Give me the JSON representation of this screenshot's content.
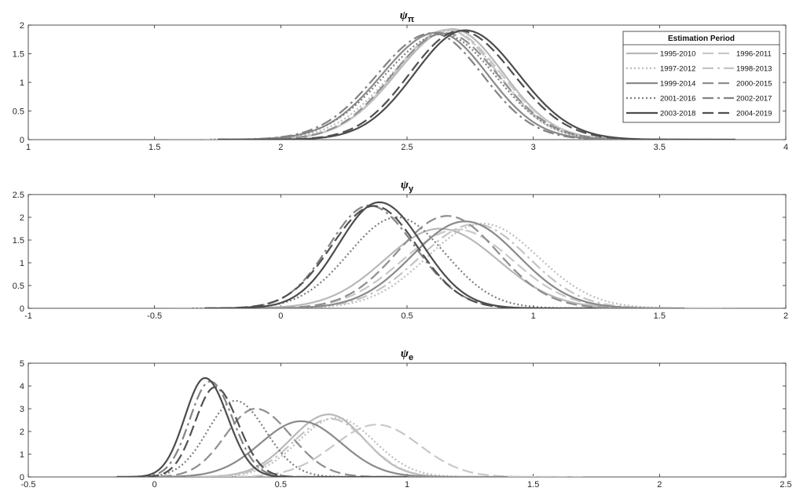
{
  "chart_data": [
    {
      "type": "line",
      "title": "ψ",
      "title_subscript": "π",
      "xlim": [
        1,
        4
      ],
      "ylim": [
        0,
        2
      ],
      "xticks": [
        "1",
        "1.5",
        "2",
        "2.5",
        "3",
        "3.5",
        "4"
      ],
      "yticks": [
        "0",
        "0.5",
        "1",
        "1.5",
        "2"
      ],
      "legend": {
        "title": "Estimation Period",
        "placement": "top-right"
      },
      "series": [
        {
          "name": "1995-2010",
          "mode": 2.68,
          "sd_left": 0.22,
          "sd_right": 0.2,
          "peak": 1.93,
          "xmin": 1.72,
          "xmax": 3.72
        },
        {
          "name": "1996-2011",
          "mode": 2.66,
          "sd_left": 0.21,
          "sd_right": 0.21,
          "peak": 1.92,
          "xmin": 1.72,
          "xmax": 3.65
        },
        {
          "name": "1997-2012",
          "mode": 2.67,
          "sd_left": 0.23,
          "sd_right": 0.19,
          "peak": 1.9,
          "xmin": 1.55,
          "xmax": 3.6
        },
        {
          "name": "1998-2013",
          "mode": 2.66,
          "sd_left": 0.21,
          "sd_right": 0.2,
          "peak": 1.91,
          "xmin": 1.7,
          "xmax": 3.65
        },
        {
          "name": "1999-2014",
          "mode": 2.62,
          "sd_left": 0.22,
          "sd_right": 0.2,
          "peak": 1.87,
          "xmin": 1.75,
          "xmax": 3.6
        },
        {
          "name": "2000-2015",
          "mode": 2.65,
          "sd_left": 0.21,
          "sd_right": 0.21,
          "peak": 1.86,
          "xmin": 1.75,
          "xmax": 3.6
        },
        {
          "name": "2001-2016",
          "mode": 2.64,
          "sd_left": 0.23,
          "sd_right": 0.21,
          "peak": 1.84,
          "xmin": 1.72,
          "xmax": 3.7
        },
        {
          "name": "2002-2017",
          "mode": 2.6,
          "sd_left": 0.22,
          "sd_right": 0.2,
          "peak": 1.86,
          "xmin": 1.75,
          "xmax": 3.6
        },
        {
          "name": "2003-2018",
          "mode": 2.73,
          "sd_left": 0.2,
          "sd_right": 0.21,
          "peak": 1.91,
          "xmin": 1.75,
          "xmax": 3.8
        },
        {
          "name": "2004-2019",
          "mode": 2.71,
          "sd_left": 0.2,
          "sd_right": 0.21,
          "peak": 1.9,
          "xmin": 1.75,
          "xmax": 3.8
        }
      ]
    },
    {
      "type": "line",
      "title": "ψ",
      "title_subscript": "y",
      "xlim": [
        -1,
        2
      ],
      "ylim": [
        0,
        2.5
      ],
      "xticks": [
        "-1",
        "-0.5",
        "0",
        "0.5",
        "1",
        "1.5",
        "2"
      ],
      "yticks": [
        "0",
        "0.5",
        "1",
        "1.5",
        "2",
        "2.5"
      ],
      "series": [
        {
          "name": "1995-2010",
          "mode": 0.63,
          "sd_left": 0.22,
          "sd_right": 0.23,
          "peak": 1.75,
          "xmin": -0.42,
          "xmax": 1.7
        },
        {
          "name": "1996-2011",
          "mode": 0.7,
          "sd_left": 0.22,
          "sd_right": 0.22,
          "peak": 1.73,
          "xmin": -0.3,
          "xmax": 1.75
        },
        {
          "name": "1997-2012",
          "mode": 0.8,
          "sd_left": 0.22,
          "sd_right": 0.22,
          "peak": 1.86,
          "xmin": -0.2,
          "xmax": 1.8
        },
        {
          "name": "1998-2013",
          "mode": 0.77,
          "sd_left": 0.22,
          "sd_right": 0.21,
          "peak": 1.85,
          "xmin": -0.2,
          "xmax": 1.75
        },
        {
          "name": "1999-2014",
          "mode": 0.73,
          "sd_left": 0.21,
          "sd_right": 0.21,
          "peak": 1.91,
          "xmin": -0.25,
          "xmax": 1.6
        },
        {
          "name": "2000-2015",
          "mode": 0.66,
          "sd_left": 0.2,
          "sd_right": 0.2,
          "peak": 2.03,
          "xmin": -0.3,
          "xmax": 1.55
        },
        {
          "name": "2001-2016",
          "mode": 0.46,
          "sd_left": 0.19,
          "sd_right": 0.19,
          "peak": 2.0,
          "xmin": -0.35,
          "xmax": 1.45
        },
        {
          "name": "2002-2017",
          "mode": 0.35,
          "sd_left": 0.16,
          "sd_right": 0.18,
          "peak": 2.26,
          "xmin": -0.3,
          "xmax": 1.25
        },
        {
          "name": "2003-2018",
          "mode": 0.39,
          "sd_left": 0.16,
          "sd_right": 0.17,
          "peak": 2.33,
          "xmin": -0.3,
          "xmax": 1.25
        },
        {
          "name": "2004-2019",
          "mode": 0.37,
          "sd_left": 0.17,
          "sd_right": 0.17,
          "peak": 2.25,
          "xmin": -0.3,
          "xmax": 1.25
        }
      ]
    },
    {
      "type": "line",
      "title": "ψ",
      "title_subscript": "e",
      "xlim": [
        -0.5,
        2.5
      ],
      "ylim": [
        0,
        5
      ],
      "xticks": [
        "-0.5",
        "0",
        "0.5",
        "1",
        "1.5",
        "2",
        "2.5"
      ],
      "yticks": [
        "0",
        "1",
        "2",
        "3",
        "4",
        "5"
      ],
      "series": [
        {
          "name": "1995-2010",
          "mode": 0.69,
          "sd_left": 0.15,
          "sd_right": 0.14,
          "peak": 2.75,
          "xmin": 0.1,
          "xmax": 1.6
        },
        {
          "name": "1996-2011",
          "mode": 0.88,
          "sd_left": 0.17,
          "sd_right": 0.17,
          "peak": 2.3,
          "xmin": 0.2,
          "xmax": 1.7
        },
        {
          "name": "1997-2012",
          "mode": 0.72,
          "sd_left": 0.15,
          "sd_right": 0.15,
          "peak": 2.6,
          "xmin": 0.1,
          "xmax": 1.5
        },
        {
          "name": "1998-2013",
          "mode": 0.7,
          "sd_left": 0.15,
          "sd_right": 0.14,
          "peak": 2.55,
          "xmin": 0.1,
          "xmax": 1.5
        },
        {
          "name": "1999-2014",
          "mode": 0.58,
          "sd_left": 0.16,
          "sd_right": 0.16,
          "peak": 2.45,
          "xmin": -0.1,
          "xmax": 1.4
        },
        {
          "name": "2000-2015",
          "mode": 0.4,
          "sd_left": 0.12,
          "sd_right": 0.14,
          "peak": 3.0,
          "xmin": -0.1,
          "xmax": 1.3
        },
        {
          "name": "2001-2016",
          "mode": 0.32,
          "sd_left": 0.11,
          "sd_right": 0.12,
          "peak": 3.35,
          "xmin": -0.1,
          "xmax": 1.2
        },
        {
          "name": "2002-2017",
          "mode": 0.22,
          "sd_left": 0.08,
          "sd_right": 0.09,
          "peak": 4.2,
          "xmin": -0.15,
          "xmax": 1.0
        },
        {
          "name": "2003-2018",
          "mode": 0.2,
          "sd_left": 0.08,
          "sd_right": 0.09,
          "peak": 4.35,
          "xmin": -0.15,
          "xmax": 1.0
        },
        {
          "name": "2004-2019",
          "mode": 0.24,
          "sd_left": 0.08,
          "sd_right": 0.09,
          "peak": 3.95,
          "xmin": -0.15,
          "xmax": 1.0
        }
      ]
    }
  ],
  "series_styles": [
    {
      "color": "#b8b8b8",
      "dash": "none"
    },
    {
      "color": "#c8c8c8",
      "dash": "14,6"
    },
    {
      "color": "#bdbdbd",
      "dash": "2,3"
    },
    {
      "color": "#c4c4c4",
      "dash": "14,5,3,5"
    },
    {
      "color": "#8a8a8a",
      "dash": "none"
    },
    {
      "color": "#8f8f8f",
      "dash": "14,6"
    },
    {
      "color": "#7e7e7e",
      "dash": "2,3"
    },
    {
      "color": "#838383",
      "dash": "14,5,3,5"
    },
    {
      "color": "#4c4c4c",
      "dash": "none"
    },
    {
      "color": "#505050",
      "dash": "14,6"
    }
  ]
}
